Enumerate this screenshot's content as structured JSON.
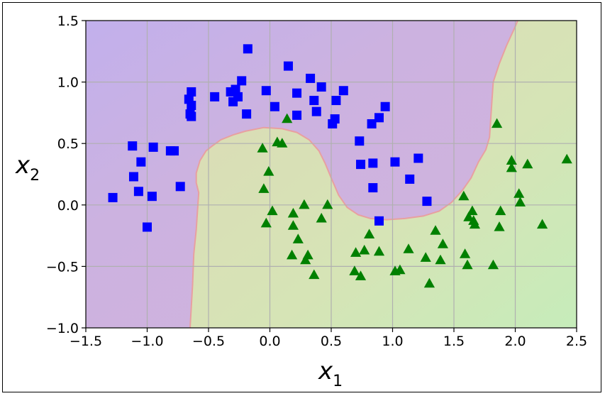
{
  "chart_data": {
    "type": "scatter",
    "title": "",
    "xlabel": "x",
    "xlabel_sub": "1",
    "ylabel": "x",
    "ylabel_sub": "2",
    "xlim": [
      -1.5,
      2.5
    ],
    "ylim": [
      -1.0,
      1.5
    ],
    "x_ticks": [
      -1.5,
      -1.0,
      -0.5,
      0.0,
      0.5,
      1.0,
      1.5,
      2.0,
      2.5
    ],
    "y_ticks": [
      -1.0,
      -0.5,
      0.0,
      0.5,
      1.0,
      1.5
    ],
    "x_tick_labels": [
      "−1.5",
      "−1.0",
      "−0.5",
      "0.0",
      "0.5",
      "1.0",
      "1.5",
      "2.0",
      "2.5"
    ],
    "y_tick_labels": [
      "−1.0",
      "−0.5",
      "0.0",
      "0.5",
      "1.0",
      "1.5"
    ],
    "grid": true,
    "legend": false,
    "colors": {
      "class0_marker": "#0000ff",
      "class1_marker": "#008000",
      "region_class0": "#c9aee0",
      "region_class1": "#d8e3b8",
      "boundary": "#e8a0a0"
    },
    "series": [
      {
        "marker": "square",
        "values": [
          [
            -1.28,
            0.06
          ],
          [
            -1.12,
            0.48
          ],
          [
            -1.11,
            0.23
          ],
          [
            -1.07,
            0.11
          ],
          [
            -1.05,
            0.35
          ],
          [
            -1.0,
            -0.18
          ],
          [
            -0.96,
            0.07
          ],
          [
            -0.95,
            0.47
          ],
          [
            -0.81,
            0.44
          ],
          [
            -0.78,
            0.44
          ],
          [
            -0.73,
            0.15
          ],
          [
            -0.66,
            0.86
          ],
          [
            -0.65,
            0.74
          ],
          [
            -0.64,
            0.72
          ],
          [
            -0.64,
            0.81
          ],
          [
            -0.64,
            0.92
          ],
          [
            -0.45,
            0.88
          ],
          [
            -0.32,
            0.92
          ],
          [
            -0.3,
            0.84
          ],
          [
            -0.28,
            0.94
          ],
          [
            -0.26,
            0.88
          ],
          [
            -0.23,
            1.01
          ],
          [
            -0.19,
            0.74
          ],
          [
            -0.18,
            1.27
          ],
          [
            -0.03,
            0.93
          ],
          [
            0.04,
            0.8
          ],
          [
            0.15,
            1.13
          ],
          [
            0.22,
            0.73
          ],
          [
            0.22,
            0.91
          ],
          [
            0.33,
            1.03
          ],
          [
            0.36,
            0.85
          ],
          [
            0.38,
            0.76
          ],
          [
            0.42,
            0.96
          ],
          [
            0.51,
            0.66
          ],
          [
            0.53,
            0.7
          ],
          [
            0.54,
            0.85
          ],
          [
            0.6,
            0.93
          ],
          [
            0.73,
            0.52
          ],
          [
            0.74,
            0.33
          ],
          [
            0.83,
            0.66
          ],
          [
            0.84,
            0.34
          ],
          [
            0.84,
            0.14
          ],
          [
            0.89,
            0.71
          ],
          [
            0.89,
            -0.13
          ],
          [
            0.94,
            0.8
          ],
          [
            1.02,
            0.35
          ],
          [
            1.14,
            0.21
          ],
          [
            1.21,
            0.38
          ],
          [
            1.28,
            0.03
          ]
        ]
      },
      {
        "marker": "triangle",
        "values": [
          [
            -0.06,
            0.46
          ],
          [
            -0.05,
            0.13
          ],
          [
            -0.03,
            -0.15
          ],
          [
            -0.01,
            0.27
          ],
          [
            0.02,
            -0.05
          ],
          [
            0.06,
            0.51
          ],
          [
            0.1,
            0.5
          ],
          [
            0.14,
            0.7
          ],
          [
            0.18,
            -0.41
          ],
          [
            0.19,
            -0.17
          ],
          [
            0.19,
            -0.07
          ],
          [
            0.23,
            -0.28
          ],
          [
            0.28,
            0.0
          ],
          [
            0.29,
            -0.45
          ],
          [
            0.31,
            -0.41
          ],
          [
            0.36,
            -0.57
          ],
          [
            0.42,
            -0.11
          ],
          [
            0.47,
            0.0
          ],
          [
            0.69,
            -0.54
          ],
          [
            0.7,
            -0.39
          ],
          [
            0.74,
            -0.58
          ],
          [
            0.77,
            -0.37
          ],
          [
            0.81,
            -0.24
          ],
          [
            0.89,
            -0.38
          ],
          [
            1.02,
            -0.54
          ],
          [
            1.06,
            -0.53
          ],
          [
            1.13,
            -0.36
          ],
          [
            1.27,
            -0.43
          ],
          [
            1.3,
            -0.64
          ],
          [
            1.35,
            -0.21
          ],
          [
            1.39,
            -0.45
          ],
          [
            1.41,
            -0.32
          ],
          [
            1.58,
            0.07
          ],
          [
            1.59,
            -0.4
          ],
          [
            1.61,
            -0.49
          ],
          [
            1.62,
            -0.1
          ],
          [
            1.65,
            -0.05
          ],
          [
            1.66,
            -0.13
          ],
          [
            1.67,
            -0.16
          ],
          [
            1.82,
            -0.49
          ],
          [
            1.85,
            0.66
          ],
          [
            1.87,
            -0.18
          ],
          [
            1.88,
            -0.05
          ],
          [
            1.97,
            0.36
          ],
          [
            1.97,
            0.3
          ],
          [
            2.03,
            0.09
          ],
          [
            2.04,
            0.02
          ],
          [
            2.1,
            0.33
          ],
          [
            2.22,
            -0.16
          ],
          [
            2.42,
            0.37
          ]
        ]
      }
    ],
    "boundary": [
      [
        -0.65,
        -1.0
      ],
      [
        -0.63,
        -0.65
      ],
      [
        -0.62,
        -0.4
      ],
      [
        -0.6,
        -0.2
      ],
      [
        -0.59,
        -0.05
      ],
      [
        -0.58,
        0.1
      ],
      [
        -0.6,
        0.18
      ],
      [
        -0.6,
        0.26
      ],
      [
        -0.57,
        0.36
      ],
      [
        -0.52,
        0.44
      ],
      [
        -0.47,
        0.48
      ],
      [
        -0.4,
        0.53
      ],
      [
        -0.3,
        0.57
      ],
      [
        -0.2,
        0.6
      ],
      [
        -0.05,
        0.63
      ],
      [
        0.1,
        0.62
      ],
      [
        0.22,
        0.59
      ],
      [
        0.32,
        0.53
      ],
      [
        0.4,
        0.44
      ],
      [
        0.45,
        0.34
      ],
      [
        0.5,
        0.22
      ],
      [
        0.56,
        0.08
      ],
      [
        0.63,
        -0.02
      ],
      [
        0.72,
        -0.08
      ],
      [
        0.82,
        -0.11
      ],
      [
        0.95,
        -0.12
      ],
      [
        1.1,
        -0.11
      ],
      [
        1.25,
        -0.09
      ],
      [
        1.38,
        -0.05
      ],
      [
        1.48,
        0.02
      ],
      [
        1.57,
        0.12
      ],
      [
        1.64,
        0.22
      ],
      [
        1.7,
        0.35
      ],
      [
        1.76,
        0.45
      ],
      [
        1.79,
        0.55
      ],
      [
        1.8,
        0.7
      ],
      [
        1.81,
        0.85
      ],
      [
        1.82,
        1.0
      ],
      [
        1.87,
        1.15
      ],
      [
        1.93,
        1.3
      ],
      [
        1.99,
        1.43
      ],
      [
        2.02,
        1.5
      ]
    ]
  }
}
